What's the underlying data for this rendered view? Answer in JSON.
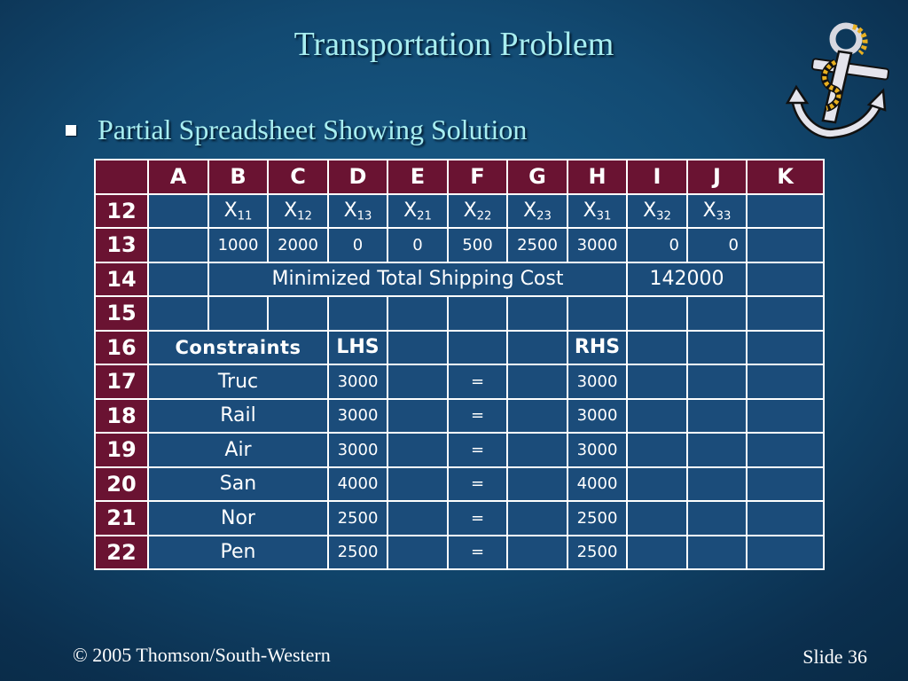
{
  "slide": {
    "title": "Transportation Problem",
    "bullet": "Partial Spreadsheet Showing Solution",
    "footer_left": "© 2005  Thomson/South-Western",
    "footer_right": "Slide 36"
  },
  "icons": {
    "clipart": "anchor-icon"
  },
  "colors": {
    "header_fill": "#6a1332",
    "title_text": "#a8eef0",
    "cell_fill": "#1b4c7a",
    "grid_line": "#ffffff"
  },
  "spreadsheet": {
    "columns": [
      "A",
      "B",
      "C",
      "D",
      "E",
      "F",
      "G",
      "H",
      "I",
      "J",
      "K"
    ],
    "rows": [
      "12",
      "13",
      "14",
      "15",
      "16",
      "17",
      "18",
      "19",
      "20",
      "21",
      "22"
    ],
    "variables": [
      {
        "base": "X",
        "sub": "11"
      },
      {
        "base": "X",
        "sub": "12"
      },
      {
        "base": "X",
        "sub": "13"
      },
      {
        "base": "X",
        "sub": "21"
      },
      {
        "base": "X",
        "sub": "22"
      },
      {
        "base": "X",
        "sub": "23"
      },
      {
        "base": "X",
        "sub": "31"
      },
      {
        "base": "X",
        "sub": "32"
      },
      {
        "base": "X",
        "sub": "33"
      }
    ],
    "solution_values": [
      "1000",
      "2000",
      "0",
      "0",
      "500",
      "2500",
      "3000",
      "0",
      "0"
    ],
    "total_cost_label": "Minimized Total Shipping Cost",
    "total_cost_value": "142000",
    "constraints_label": "Constraints",
    "lhs_label": "LHS",
    "rhs_label": "RHS",
    "constraints": [
      {
        "name": "Truc",
        "lhs": "3000",
        "op": "=",
        "rhs": "3000"
      },
      {
        "name": "Rail",
        "lhs": "3000",
        "op": "=",
        "rhs": "3000"
      },
      {
        "name": "Air",
        "lhs": "3000",
        "op": "=",
        "rhs": "3000"
      },
      {
        "name": "San",
        "lhs": "4000",
        "op": "=",
        "rhs": "4000"
      },
      {
        "name": "Nor",
        "lhs": "2500",
        "op": "=",
        "rhs": "2500"
      },
      {
        "name": "Pen",
        "lhs": "2500",
        "op": "=",
        "rhs": "2500"
      }
    ]
  }
}
